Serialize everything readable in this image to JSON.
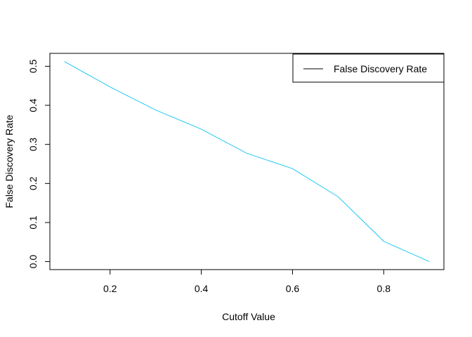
{
  "chart_data": {
    "type": "line",
    "title": "",
    "xlabel": "Cutoff Value",
    "ylabel": "False Discovery Rate",
    "xlim": [
      0.068,
      0.932
    ],
    "ylim": [
      -0.0205,
      0.533
    ],
    "xticks": [
      0.2,
      0.4,
      0.6,
      0.8
    ],
    "xtick_labels": [
      "0.2",
      "0.4",
      "0.6",
      "0.8"
    ],
    "yticks": [
      0.0,
      0.1,
      0.2,
      0.3,
      0.4,
      0.5
    ],
    "ytick_labels": [
      "0.0",
      "0.1",
      "0.2",
      "0.3",
      "0.4",
      "0.5"
    ],
    "grid": false,
    "legend_position": "top-right",
    "series": [
      {
        "name": "False Discovery Rate",
        "color": "#22c8f0",
        "legend_line_color": "#000000",
        "x": [
          0.1,
          0.2,
          0.3,
          0.4,
          0.5,
          0.6,
          0.7,
          0.8,
          0.9
        ],
        "y": [
          0.512,
          0.447,
          0.388,
          0.339,
          0.277,
          0.238,
          0.166,
          0.052,
          0.0
        ]
      }
    ]
  }
}
